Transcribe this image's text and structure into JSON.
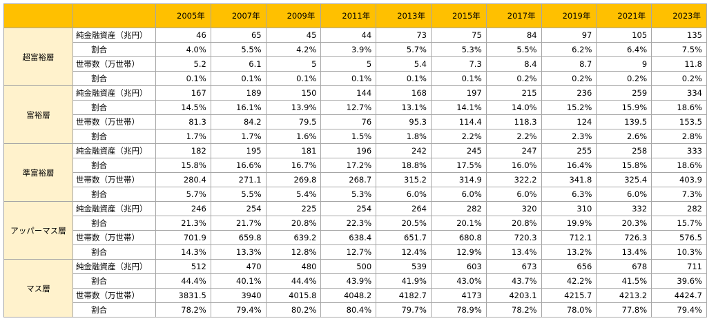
{
  "table": {
    "header": [
      "2005年",
      "2007年",
      "2009年",
      "2011年",
      "2013年",
      "2015年",
      "2017年",
      "2019年",
      "2021年",
      "2023年"
    ],
    "groups": [
      {
        "name": "超富裕層",
        "rows": [
          {
            "label": "純金融資産（兆円）",
            "cells": [
              "46",
              "65",
              "45",
              "44",
              "73",
              "75",
              "84",
              "97",
              "105",
              "135"
            ]
          },
          {
            "label": "割合",
            "cells": [
              "4.0%",
              "5.5%",
              "4.2%",
              "3.9%",
              "5.7%",
              "5.3%",
              "5.5%",
              "6.2%",
              "6.4%",
              "7.5%"
            ]
          },
          {
            "label": "世帯数（万世帯）",
            "cells": [
              "5.2",
              "6.1",
              "5",
              "5",
              "5.4",
              "7.3",
              "8.4",
              "8.7",
              "9",
              "11.8"
            ]
          },
          {
            "label": "割合",
            "cells": [
              "0.1%",
              "0.1%",
              "0.1%",
              "0.1%",
              "0.1%",
              "0.1%",
              "0.2%",
              "0.2%",
              "0.2%",
              "0.2%"
            ]
          }
        ]
      },
      {
        "name": "富裕層",
        "rows": [
          {
            "label": "純金融資産（兆円）",
            "cells": [
              "167",
              "189",
              "150",
              "144",
              "168",
              "197",
              "215",
              "236",
              "259",
              "334"
            ]
          },
          {
            "label": "割合",
            "cells": [
              "14.5%",
              "16.1%",
              "13.9%",
              "12.7%",
              "13.1%",
              "14.1%",
              "14.0%",
              "15.2%",
              "15.9%",
              "18.6%"
            ]
          },
          {
            "label": "世帯数（万世帯）",
            "cells": [
              "81.3",
              "84.2",
              "79.5",
              "76",
              "95.3",
              "114.4",
              "118.3",
              "124",
              "139.5",
              "153.5"
            ]
          },
          {
            "label": "割合",
            "cells": [
              "1.7%",
              "1.7%",
              "1.6%",
              "1.5%",
              "1.8%",
              "2.2%",
              "2.2%",
              "2.3%",
              "2.6%",
              "2.8%"
            ]
          }
        ]
      },
      {
        "name": "準富裕層",
        "rows": [
          {
            "label": "純金融資産（兆円）",
            "cells": [
              "182",
              "195",
              "181",
              "196",
              "242",
              "245",
              "247",
              "255",
              "258",
              "333"
            ]
          },
          {
            "label": "割合",
            "cells": [
              "15.8%",
              "16.6%",
              "16.7%",
              "17.2%",
              "18.8%",
              "17.5%",
              "16.0%",
              "16.4%",
              "15.8%",
              "18.6%"
            ]
          },
          {
            "label": "世帯数（万世帯）",
            "cells": [
              "280.4",
              "271.1",
              "269.8",
              "268.7",
              "315.2",
              "314.9",
              "322.2",
              "341.8",
              "325.4",
              "403.9"
            ]
          },
          {
            "label": "割合",
            "cells": [
              "5.7%",
              "5.5%",
              "5.4%",
              "5.3%",
              "6.0%",
              "6.0%",
              "6.0%",
              "6.3%",
              "6.0%",
              "7.3%"
            ]
          }
        ]
      },
      {
        "name": "アッパーマス層",
        "rows": [
          {
            "label": "純金融資産（兆円）",
            "cells": [
              "246",
              "254",
              "225",
              "254",
              "264",
              "282",
              "320",
              "310",
              "332",
              "282"
            ]
          },
          {
            "label": "割合",
            "cells": [
              "21.3%",
              "21.7%",
              "20.8%",
              "22.3%",
              "20.5%",
              "20.1%",
              "20.8%",
              "19.9%",
              "20.3%",
              "15.7%"
            ]
          },
          {
            "label": "世帯数（万世帯）",
            "cells": [
              "701.9",
              "659.8",
              "639.2",
              "638.4",
              "651.7",
              "680.8",
              "720.3",
              "712.1",
              "726.3",
              "576.5"
            ]
          },
          {
            "label": "割合",
            "cells": [
              "14.3%",
              "13.3%",
              "12.8%",
              "12.7%",
              "12.4%",
              "12.9%",
              "13.4%",
              "13.2%",
              "13.4%",
              "10.3%"
            ]
          }
        ]
      },
      {
        "name": "マス層",
        "rows": [
          {
            "label": "純金融資産（兆円）",
            "cells": [
              "512",
              "470",
              "480",
              "500",
              "539",
              "603",
              "673",
              "656",
              "678",
              "711"
            ]
          },
          {
            "label": "割合",
            "cells": [
              "44.4%",
              "40.1%",
              "44.4%",
              "43.9%",
              "41.9%",
              "43.0%",
              "43.7%",
              "42.2%",
              "41.5%",
              "39.6%"
            ]
          },
          {
            "label": "世帯数（万世帯）",
            "cells": [
              "3831.5",
              "3940",
              "4015.8",
              "4048.2",
              "4182.7",
              "4173",
              "4203.1",
              "4215.7",
              "4213.2",
              "4424.7"
            ]
          },
          {
            "label": "割合",
            "cells": [
              "78.2%",
              "79.4%",
              "80.2%",
              "80.4%",
              "79.7%",
              "78.9%",
              "78.2%",
              "78.0%",
              "77.8%",
              "79.4%"
            ]
          }
        ]
      }
    ]
  }
}
